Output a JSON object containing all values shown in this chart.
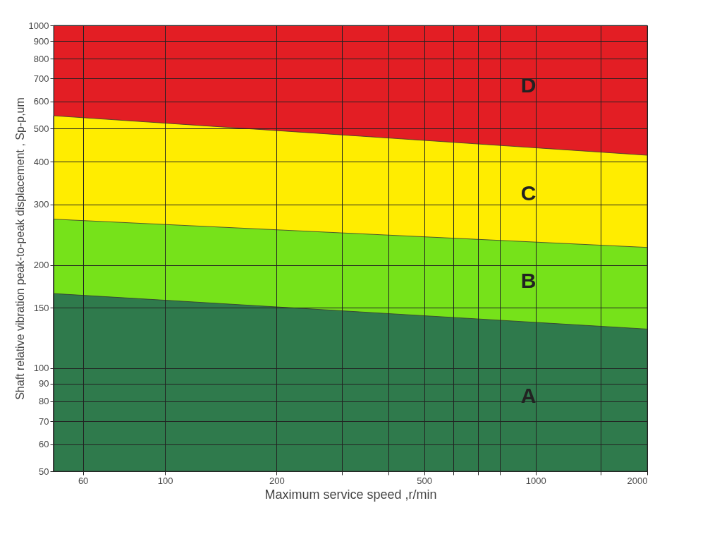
{
  "chart_data": {
    "type": "area",
    "xlabel": "Maximum service speed ,r/min",
    "ylabel": "Shaft relative vibration peak-to-peak displacement , Sp-p,um",
    "x": [
      50,
      2000
    ],
    "series": [
      {
        "color": "#e31e24",
        "values": [
          1000,
          1000
        ]
      },
      {
        "color": "#ffed00",
        "values": [
          545,
          418
        ]
      },
      {
        "color": "#76e21a",
        "values": [
          272,
          225
        ]
      },
      {
        "color": "#2f7a4c",
        "values": [
          165,
          130
        ]
      }
    ],
    "log": "xy",
    "xlim": [
      50,
      2000
    ],
    "ylim": [
      50,
      1000
    ],
    "xticks": [
      60,
      100,
      200,
      {
        "value": 300,
        "label": null
      },
      {
        "value": 400,
        "label": null
      },
      500,
      {
        "value": 600,
        "label": null
      },
      {
        "value": 700,
        "label": null
      },
      {
        "value": 800,
        "label": null
      },
      1000,
      {
        "value": 1500,
        "label": null
      },
      2000
    ],
    "yticks": [
      50,
      60,
      70,
      80,
      90,
      100,
      150,
      200,
      300,
      400,
      500,
      600,
      700,
      800,
      900,
      1000
    ],
    "grid": true,
    "annotations": [
      "A",
      "B",
      "C",
      "D"
    ]
  }
}
